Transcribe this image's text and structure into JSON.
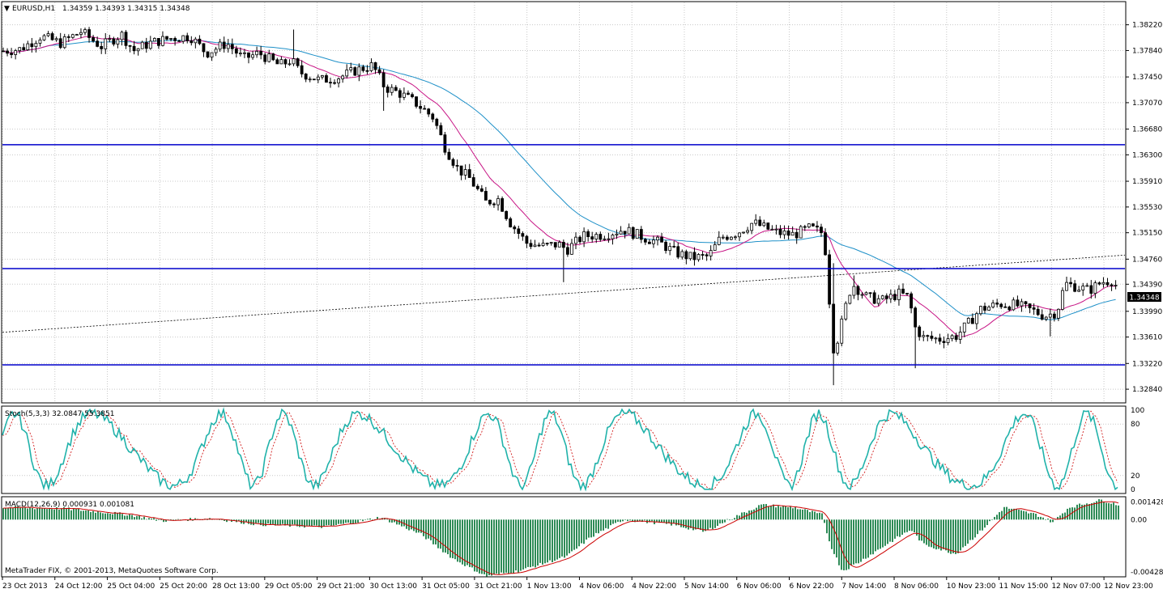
{
  "header": {
    "symbol": "EURUSD,H1",
    "ohlc": "1.34359 1.34393 1.34315 1.34348"
  },
  "price_axis": {
    "ticks": [
      "1.38220",
      "1.37840",
      "1.37450",
      "1.37070",
      "1.36680",
      "1.36300",
      "1.35910",
      "1.35530",
      "1.35150",
      "1.34760",
      "1.34390",
      "1.33990",
      "1.33610",
      "1.33220",
      "1.32840"
    ],
    "current_price": "1.34348"
  },
  "stoch": {
    "label": "Stoch(5,3,3) 32.0847 55.3851",
    "ticks": [
      "100",
      "80",
      "20",
      "0"
    ]
  },
  "macd": {
    "label": "MACD(12,26,9) 0.000931 0.001081",
    "ticks": [
      "0.001428",
      "0.00",
      "-0.004282"
    ]
  },
  "time_axis": {
    "ticks": [
      "23 Oct 2013",
      "24 Oct 12:00",
      "25 Oct 04:00",
      "25 Oct 20:00",
      "28 Oct 13:00",
      "29 Oct 05:00",
      "29 Oct 21:00",
      "30 Oct 13:00",
      "31 Oct 05:00",
      "31 Oct 21:00",
      "1 Nov 13:00",
      "4 Nov 06:00",
      "4 Nov 22:00",
      "5 Nov 14:00",
      "6 Nov 06:00",
      "6 Nov 22:00",
      "7 Nov 14:00",
      "8 Nov 06:00",
      "10 Nov 23:00",
      "11 Nov 15:00",
      "12 Nov 07:00",
      "12 Nov 23:00"
    ]
  },
  "copyright": "MetaTrader FIX, © 2001-2013, MetaQuotes Software Corp.",
  "colors": {
    "bull": "#ffffff",
    "bear": "#000000",
    "ma_fast": "#c71585",
    "ma_slow": "#1e90c8",
    "levels": "#0000cc",
    "stoch_main": "#20b2aa",
    "stoch_signal": "#cc0000",
    "macd_hist": "#2e8b57",
    "macd_signal": "#cc0000"
  },
  "chart_data": {
    "type": "candlestick",
    "symbol": "EURUSD",
    "timeframe": "H1",
    "ylim": [
      1.3265,
      1.3855
    ],
    "horizontal_levels": [
      1.3645,
      1.3462,
      1.332
    ],
    "trendline": {
      "start": 1.3368,
      "end": 1.3482
    },
    "keypoints": [
      [
        0,
        1.3783
      ],
      [
        25,
        1.3786
      ],
      [
        50,
        1.3805
      ],
      [
        75,
        1.3795
      ],
      [
        100,
        1.3812
      ],
      [
        125,
        1.379
      ],
      [
        150,
        1.3808
      ],
      [
        165,
        1.3784
      ],
      [
        185,
        1.3795
      ],
      [
        210,
        1.3802
      ],
      [
        235,
        1.3805
      ],
      [
        255,
        1.378
      ],
      [
        280,
        1.3795
      ],
      [
        300,
        1.3772
      ],
      [
        320,
        1.378
      ],
      [
        345,
        1.3762
      ],
      [
        360,
        1.377
      ],
      [
        370,
        1.3752
      ],
      [
        395,
        1.374
      ],
      [
        420,
        1.3745
      ],
      [
        440,
        1.3755
      ],
      [
        460,
        1.3762
      ],
      [
        475,
        1.373
      ],
      [
        495,
        1.372
      ],
      [
        515,
        1.3705
      ],
      [
        535,
        1.3685
      ],
      [
        550,
        1.364
      ],
      [
        565,
        1.361
      ],
      [
        580,
        1.3595
      ],
      [
        600,
        1.356
      ],
      [
        615,
        1.3565
      ],
      [
        630,
        1.353
      ],
      [
        650,
        1.35
      ],
      [
        670,
        1.3495
      ],
      [
        690,
        1.3498
      ],
      [
        700,
        1.349
      ],
      [
        720,
        1.351
      ],
      [
        745,
        1.3512
      ],
      [
        770,
        1.352
      ],
      [
        795,
        1.3508
      ],
      [
        815,
        1.35
      ],
      [
        835,
        1.3485
      ],
      [
        855,
        1.3478
      ],
      [
        875,
        1.348
      ],
      [
        890,
        1.3508
      ],
      [
        910,
        1.3515
      ],
      [
        930,
        1.353
      ],
      [
        945,
        1.3522
      ],
      [
        960,
        1.3515
      ],
      [
        980,
        1.3512
      ],
      [
        1000,
        1.3522
      ],
      [
        1015,
        1.3515
      ],
      [
        1022,
        1.347
      ],
      [
        1027,
        1.334
      ],
      [
        1035,
        1.336
      ],
      [
        1045,
        1.341
      ],
      [
        1052,
        1.344
      ],
      [
        1070,
        1.342
      ],
      [
        1090,
        1.3415
      ],
      [
        1110,
        1.3425
      ],
      [
        1122,
        1.342
      ],
      [
        1130,
        1.3375
      ],
      [
        1140,
        1.336
      ],
      [
        1160,
        1.3358
      ],
      [
        1180,
        1.3362
      ],
      [
        1195,
        1.338
      ],
      [
        1210,
        1.3402
      ],
      [
        1235,
        1.341
      ],
      [
        1255,
        1.3408
      ],
      [
        1275,
        1.34
      ],
      [
        1290,
        1.3392
      ],
      [
        1305,
        1.3398
      ],
      [
        1315,
        1.344
      ],
      [
        1330,
        1.3435
      ],
      [
        1345,
        1.343
      ],
      [
        1360,
        1.3442
      ],
      [
        1372,
        1.3445
      ],
      [
        1380,
        1.3435
      ]
    ]
  }
}
